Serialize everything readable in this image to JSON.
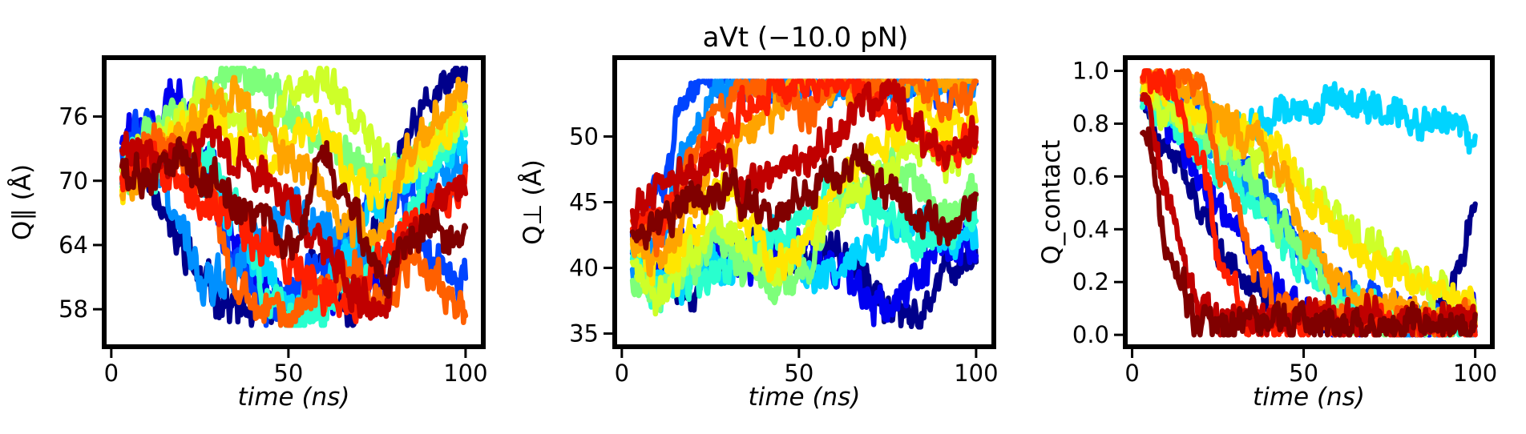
{
  "figure": {
    "title": "aVt (−10.0 pN)",
    "series_colors": [
      "#00008b",
      "#0000f0",
      "#0044ff",
      "#0090ff",
      "#00d4ff",
      "#29ffce",
      "#7dff7a",
      "#ceff29",
      "#ffe600",
      "#ffa400",
      "#ff6000",
      "#ff1e00",
      "#c00000",
      "#800000"
    ]
  },
  "chart_data": [
    {
      "type": "line",
      "title": "",
      "xlabel": "time (ns)",
      "ylabel": "Q∥ (Å)",
      "xlim": [
        -2,
        105
      ],
      "ylim": [
        54.5,
        81.5
      ],
      "xticks": [
        0,
        50,
        100
      ],
      "yticks": [
        58,
        64,
        70,
        76
      ],
      "xtick_labels": [
        "0",
        "50",
        "100"
      ],
      "ytick_labels": [
        "58",
        "64",
        "70",
        "76"
      ],
      "x_range": [
        3,
        100
      ],
      "clip": [
        56.5,
        80.5
      ],
      "noise": 2.6,
      "series": [
        {
          "start": 3,
          "anchors": [
            72,
            70,
            64,
            60,
            58,
            57,
            59,
            62,
            58,
            66,
            74,
            78,
            80
          ]
        },
        {
          "start": 3,
          "anchors": [
            74,
            76,
            78,
            72,
            64,
            60,
            57,
            58,
            62,
            60,
            64,
            72,
            78
          ]
        },
        {
          "start": 3,
          "anchors": [
            73,
            76,
            74,
            70,
            62,
            58,
            60,
            62,
            66,
            70,
            68,
            62,
            60
          ]
        },
        {
          "start": 3,
          "anchors": [
            71,
            72,
            66,
            60,
            62,
            65,
            68,
            66,
            64,
            62,
            66,
            70,
            72
          ]
        },
        {
          "start": 3,
          "anchors": [
            70,
            72,
            74,
            70,
            66,
            62,
            58,
            60,
            64,
            68,
            70,
            72,
            74
          ]
        },
        {
          "start": 3,
          "anchors": [
            72,
            70,
            74,
            72,
            68,
            60,
            57,
            58,
            60,
            62,
            66,
            72,
            76
          ]
        },
        {
          "start": 3,
          "anchors": [
            70,
            74,
            76,
            78,
            80,
            79,
            76,
            74,
            72,
            70,
            72,
            74,
            76
          ]
        },
        {
          "start": 3,
          "anchors": [
            71,
            74,
            76,
            78,
            76,
            74,
            78,
            80,
            76,
            72,
            70,
            74,
            76
          ]
        },
        {
          "start": 3,
          "anchors": [
            70,
            72,
            74,
            76,
            74,
            72,
            74,
            76,
            70,
            68,
            72,
            74,
            76
          ]
        },
        {
          "start": 3,
          "anchors": [
            69,
            72,
            74,
            77,
            78,
            74,
            72,
            70,
            66,
            64,
            72,
            76,
            78
          ]
        },
        {
          "start": 3,
          "anchors": [
            70,
            74,
            72,
            70,
            60,
            58,
            57,
            60,
            62,
            58,
            62,
            60,
            57
          ]
        },
        {
          "start": 3,
          "anchors": [
            71,
            72,
            70,
            68,
            66,
            64,
            62,
            60,
            58,
            62,
            66,
            68,
            70
          ]
        },
        {
          "start": 3,
          "anchors": [
            73,
            72,
            72,
            74,
            72,
            70,
            68,
            64,
            60,
            58,
            64,
            68,
            70
          ]
        },
        {
          "start": 3,
          "anchors": [
            71,
            70,
            72,
            70,
            68,
            66,
            64,
            72,
            68,
            60,
            64,
            66,
            64
          ]
        }
      ]
    },
    {
      "type": "line",
      "title": "",
      "xlabel": "time (ns)",
      "ylabel": "Q⊥ (Å)",
      "xlim": [
        -2,
        105
      ],
      "ylim": [
        34,
        56
      ],
      "xticks": [
        0,
        50,
        100
      ],
      "yticks": [
        35,
        40,
        45,
        50
      ],
      "xtick_labels": [
        "0",
        "50",
        "100"
      ],
      "ytick_labels": [
        "35",
        "40",
        "45",
        "50"
      ],
      "x_range": [
        3,
        100
      ],
      "clip": [
        35.5,
        54.2
      ],
      "noise": 2.0,
      "series": [
        {
          "start": 3,
          "anchors": [
            42,
            40,
            38,
            41,
            42,
            41,
            40,
            42,
            39,
            37,
            36,
            40,
            41
          ]
        },
        {
          "start": 3,
          "anchors": [
            41,
            40,
            42,
            41,
            40,
            41,
            42,
            40,
            38,
            37,
            40,
            42,
            41
          ]
        },
        {
          "start": 3,
          "anchors": [
            42,
            46,
            54,
            54,
            54,
            54,
            54,
            54,
            54,
            54,
            54,
            54,
            54
          ]
        },
        {
          "start": 3,
          "anchors": [
            40,
            42,
            50,
            54,
            54,
            54,
            54,
            54,
            54,
            54,
            54,
            54,
            54
          ]
        },
        {
          "start": 3,
          "anchors": [
            41,
            40,
            39,
            40,
            41,
            42,
            40,
            39,
            41,
            43,
            44,
            42,
            43
          ]
        },
        {
          "start": 3,
          "anchors": [
            40,
            38,
            39,
            40,
            41,
            42,
            44,
            46,
            45,
            44,
            42,
            43,
            44
          ]
        },
        {
          "start": 3,
          "anchors": [
            39,
            38,
            40,
            42,
            40,
            38,
            40,
            44,
            46,
            48,
            46,
            44,
            46
          ]
        },
        {
          "start": 3,
          "anchors": [
            40,
            38,
            41,
            43,
            42,
            40,
            42,
            44,
            46,
            48,
            50,
            48,
            49
          ]
        },
        {
          "start": 3,
          "anchors": [
            41,
            40,
            42,
            46,
            44,
            40,
            42,
            46,
            48,
            50,
            52,
            50,
            52
          ]
        },
        {
          "start": 3,
          "anchors": [
            42,
            40,
            44,
            48,
            50,
            52,
            54,
            54,
            54,
            54,
            54,
            54,
            54
          ]
        },
        {
          "start": 3,
          "anchors": [
            43,
            42,
            48,
            52,
            54,
            54,
            52,
            54,
            54,
            54,
            54,
            52,
            54
          ]
        },
        {
          "start": 3,
          "anchors": [
            42,
            44,
            46,
            50,
            52,
            54,
            54,
            54,
            54,
            52,
            50,
            48,
            50
          ]
        },
        {
          "start": 3,
          "anchors": [
            44,
            46,
            47,
            48,
            46,
            47,
            48,
            50,
            52,
            54,
            50,
            48,
            50
          ]
        },
        {
          "start": 3,
          "anchors": [
            42,
            44,
            45,
            46,
            45,
            44,
            46,
            47,
            48,
            46,
            44,
            43,
            45
          ]
        }
      ]
    },
    {
      "type": "line",
      "title": "",
      "xlabel": "time (ns)",
      "ylabel": "Q_contact",
      "xlim": [
        -2,
        105
      ],
      "ylim": [
        -0.045,
        1.05
      ],
      "xticks": [
        0,
        50,
        100
      ],
      "yticks": [
        0.0,
        0.2,
        0.4,
        0.6,
        0.8,
        1.0
      ],
      "xtick_labels": [
        "0",
        "50",
        "100"
      ],
      "ytick_labels": [
        "0.0",
        "0.2",
        "0.4",
        "0.6",
        "0.8",
        "1.0"
      ],
      "x_range": [
        3,
        100
      ],
      "clip": [
        0.0,
        1.0
      ],
      "noise": 0.09,
      "series": [
        {
          "start": 3,
          "anchors": [
            0.9,
            0.7,
            0.5,
            0.3,
            0.2,
            0.1,
            0.08,
            0.05,
            0.1,
            0.08,
            0.06,
            0.15,
            0.45
          ]
        },
        {
          "start": 3,
          "anchors": [
            0.95,
            0.8,
            0.6,
            0.45,
            0.3,
            0.15,
            0.1,
            0.05,
            0.03,
            0.05,
            0.04,
            0.03,
            0.1
          ]
        },
        {
          "start": 3,
          "anchors": [
            0.95,
            0.9,
            0.85,
            0.7,
            0.6,
            0.45,
            0.3,
            0.2,
            0.15,
            0.1,
            0.05,
            0.05,
            0.05
          ]
        },
        {
          "start": 3,
          "anchors": [
            0.95,
            0.9,
            0.8,
            0.7,
            0.55,
            0.4,
            0.3,
            0.15,
            0.1,
            0.05,
            0.05,
            0.05,
            0.05
          ]
        },
        {
          "start": 3,
          "anchors": [
            0.95,
            0.85,
            0.85,
            0.8,
            0.8,
            0.85,
            0.85,
            0.9,
            0.85,
            0.85,
            0.8,
            0.8,
            0.75
          ]
        },
        {
          "start": 3,
          "anchors": [
            0.9,
            0.8,
            0.7,
            0.6,
            0.5,
            0.35,
            0.25,
            0.15,
            0.1,
            0.05,
            0.05,
            0.05,
            0.05
          ]
        },
        {
          "start": 3,
          "anchors": [
            0.95,
            0.85,
            0.75,
            0.7,
            0.6,
            0.4,
            0.3,
            0.1,
            0.05,
            0.05,
            0.05,
            0.05,
            0.05
          ]
        },
        {
          "start": 3,
          "anchors": [
            0.95,
            0.85,
            0.8,
            0.75,
            0.7,
            0.6,
            0.55,
            0.45,
            0.35,
            0.3,
            0.2,
            0.15,
            0.1
          ]
        },
        {
          "start": 3,
          "anchors": [
            0.95,
            0.9,
            0.85,
            0.8,
            0.75,
            0.7,
            0.5,
            0.4,
            0.3,
            0.25,
            0.2,
            0.15,
            0.1
          ]
        },
        {
          "start": 3,
          "anchors": [
            0.98,
            0.95,
            0.9,
            0.8,
            0.75,
            0.6,
            0.35,
            0.2,
            0.15,
            0.1,
            0.08,
            0.05,
            0.05
          ]
        },
        {
          "start": 3,
          "anchors": [
            1.0,
            0.98,
            0.95,
            0.6,
            0.3,
            0.1,
            0.08,
            0.06,
            0.05,
            0.06,
            0.05,
            0.05,
            0.05
          ]
        },
        {
          "start": 3,
          "anchors": [
            1.0,
            0.95,
            0.7,
            0.2,
            0.05,
            0.03,
            0.05,
            0.03,
            0.05,
            0.04,
            0.05,
            0.05,
            0.04
          ]
        },
        {
          "start": 3,
          "anchors": [
            0.9,
            0.5,
            0.1,
            0.05,
            0.05,
            0.05,
            0.08,
            0.05,
            0.08,
            0.06,
            0.05,
            0.08,
            0.05
          ]
        },
        {
          "start": 3,
          "anchors": [
            0.8,
            0.3,
            0.05,
            0.03,
            0.05,
            0.04,
            0.05,
            0.03,
            0.04,
            0.03,
            0.05,
            0.04,
            0.03
          ]
        }
      ]
    }
  ]
}
